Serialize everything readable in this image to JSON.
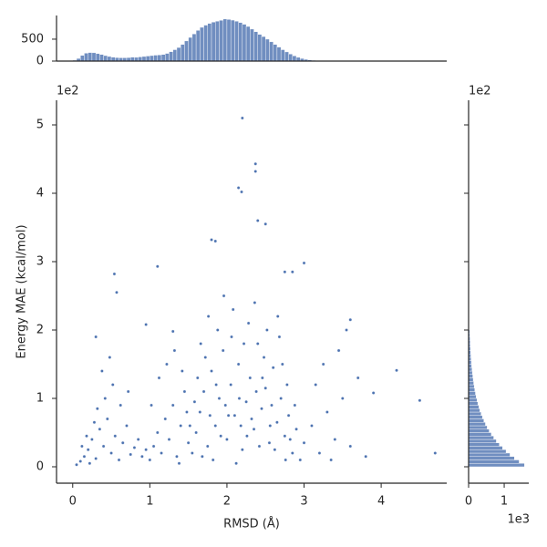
{
  "chart_data": [
    {
      "type": "scatter",
      "xlabel": "RMSD (Å)",
      "ylabel": "Energy MAE (kcal/mol)",
      "y_offset": "1e2",
      "color": "#4c72b0",
      "xlim": [
        -0.21,
        4.85
      ],
      "ylim": [
        -24,
        536
      ],
      "xticks": [
        0,
        1,
        2,
        3,
        4
      ],
      "yticks": [
        0,
        {
          "value": 100,
          "label": "1"
        },
        {
          "value": 200,
          "label": "2"
        },
        {
          "value": 300,
          "label": "3"
        },
        {
          "value": 400,
          "label": "4"
        },
        {
          "value": 500,
          "label": "5"
        }
      ],
      "x": [
        0.05,
        0.1,
        0.15,
        0.2,
        0.25,
        0.3,
        0.35,
        0.4,
        0.45,
        0.5,
        0.55,
        0.6,
        0.65,
        0.7,
        0.75,
        0.8,
        0.12,
        0.22,
        0.32,
        0.42,
        0.52,
        0.48,
        0.38,
        0.28,
        0.18,
        0.62,
        0.72,
        0.85,
        0.9,
        0.95,
        1.0,
        1.05,
        1.1,
        1.15,
        1.2,
        1.25,
        1.3,
        1.35,
        1.4,
        1.45,
        1.5,
        1.12,
        1.22,
        1.32,
        1.42,
        1.48,
        1.02,
        1.38,
        1.55,
        1.6,
        1.65,
        1.7,
        1.75,
        1.8,
        1.85,
        1.9,
        1.95,
        2.0,
        2.05,
        2.1,
        2.15,
        2.2,
        2.25,
        2.3,
        2.35,
        2.4,
        2.45,
        2.5,
        2.55,
        2.6,
        2.65,
        2.7,
        2.75,
        2.8,
        2.85,
        2.9,
        2.95,
        3.0,
        1.58,
        1.68,
        1.78,
        1.88,
        1.98,
        2.08,
        2.18,
        2.28,
        2.38,
        2.48,
        2.58,
        2.68,
        2.78,
        2.88,
        1.62,
        1.72,
        1.82,
        1.92,
        2.02,
        2.12,
        2.22,
        2.32,
        2.42,
        2.52,
        2.62,
        2.72,
        2.82,
        1.52,
        1.66,
        1.76,
        1.86,
        1.96,
        2.06,
        2.16,
        2.26,
        2.36,
        2.46,
        2.56,
        2.66,
        2.76,
        3.1,
        3.2,
        3.3,
        3.4,
        3.5,
        3.15,
        3.25,
        3.35,
        3.6,
        3.8,
        3.45,
        2.2,
        2.37,
        2.37,
        2.15,
        2.19,
        2.4,
        2.5,
        1.85,
        1.8,
        0.54,
        1.1,
        0.57,
        4.2,
        4.5,
        4.7,
        3.9,
        3.7,
        3.6,
        3.55,
        3.0,
        2.85,
        2.75,
        1.3,
        0.95,
        0.3
      ],
      "values": [
        3,
        8,
        15,
        25,
        40,
        12,
        55,
        30,
        70,
        20,
        45,
        10,
        35,
        60,
        18,
        28,
        30,
        5,
        85,
        100,
        120,
        160,
        140,
        65,
        45,
        90,
        110,
        40,
        15,
        25,
        10,
        30,
        50,
        20,
        70,
        40,
        90,
        15,
        60,
        110,
        35,
        130,
        150,
        170,
        140,
        80,
        90,
        5,
        20,
        50,
        80,
        110,
        30,
        140,
        60,
        100,
        170,
        40,
        120,
        75,
        150,
        25,
        95,
        130,
        55,
        180,
        85,
        115,
        35,
        145,
        65,
        100,
        45,
        75,
        20,
        55,
        10,
        35,
        95,
        15,
        75,
        200,
        90,
        230,
        60,
        210,
        110,
        160,
        90,
        190,
        120,
        90,
        130,
        160,
        10,
        45,
        75,
        5,
        180,
        70,
        30,
        200,
        25,
        150,
        40,
        60,
        180,
        220,
        120,
        250,
        190,
        100,
        45,
        240,
        130,
        60,
        220,
        10,
        60,
        20,
        80,
        40,
        100,
        120,
        150,
        10,
        30,
        15,
        170,
        510,
        443,
        432,
        408,
        402,
        360,
        355,
        330,
        332,
        282,
        293,
        255,
        141,
        97,
        20,
        108,
        130,
        215,
        200,
        298,
        285,
        285,
        198,
        208,
        190
      ]
    },
    {
      "type": "histogram",
      "color": "#4c72b0",
      "xlim": [
        -0.21,
        4.85
      ],
      "ylim": [
        0,
        1040
      ],
      "yticks": [
        0,
        500
      ],
      "bins": [
        0,
        0.05,
        0.1,
        0.15,
        0.2,
        0.25,
        0.3,
        0.35,
        0.4,
        0.45,
        0.5,
        0.55,
        0.6,
        0.65,
        0.7,
        0.75,
        0.8,
        0.85,
        0.9,
        0.95,
        1.0,
        1.05,
        1.1,
        1.15,
        1.2,
        1.25,
        1.3,
        1.35,
        1.4,
        1.45,
        1.5,
        1.55,
        1.6,
        1.65,
        1.7,
        1.75,
        1.8,
        1.85,
        1.9,
        1.95,
        2.0,
        2.05,
        2.1,
        2.15,
        2.2,
        2.25,
        2.3,
        2.35,
        2.4,
        2.45,
        2.5,
        2.55,
        2.6,
        2.65,
        2.7,
        2.75,
        2.8,
        2.85,
        2.9,
        2.95,
        3.0,
        3.05,
        3.1,
        3.15,
        3.2,
        3.25
      ],
      "values": [
        20,
        60,
        130,
        180,
        195,
        190,
        170,
        150,
        125,
        105,
        90,
        80,
        75,
        75,
        80,
        90,
        85,
        95,
        105,
        115,
        125,
        135,
        140,
        150,
        175,
        215,
        260,
        310,
        380,
        460,
        540,
        620,
        700,
        770,
        820,
        860,
        890,
        910,
        930,
        960,
        950,
        935,
        910,
        880,
        840,
        790,
        730,
        670,
        610,
        560,
        500,
        440,
        380,
        320,
        260,
        210,
        160,
        120,
        85,
        60,
        40,
        28,
        18,
        10,
        5
      ]
    },
    {
      "type": "histogram-horizontal",
      "color": "#4c72b0",
      "x_offset": "1e3",
      "y_offset": "1e2",
      "xlim": [
        0,
        1690
      ],
      "ylim": [
        -24,
        536
      ],
      "xticks": [
        0,
        {
          "value": 1000,
          "label": "1"
        }
      ],
      "yticks": [
        0,
        100,
        200,
        300,
        400,
        500
      ],
      "bins": [
        0,
        5,
        10,
        15,
        20,
        25,
        30,
        35,
        40,
        45,
        50,
        55,
        60,
        65,
        70,
        75,
        80,
        85,
        90,
        95,
        100,
        105,
        110,
        115,
        120,
        125,
        130,
        135,
        140,
        145,
        150,
        155,
        160,
        165,
        170,
        175,
        180,
        185,
        190,
        195,
        200
      ],
      "values": [
        1570,
        1420,
        1285,
        1163,
        1052,
        952,
        861,
        779,
        705,
        638,
        577,
        522,
        473,
        428,
        387,
        350,
        317,
        287,
        259,
        235,
        212,
        192,
        174,
        157,
        142,
        129,
        117,
        105,
        95,
        86,
        78,
        71,
        64,
        58,
        52,
        47,
        43,
        39,
        35,
        32
      ]
    }
  ]
}
